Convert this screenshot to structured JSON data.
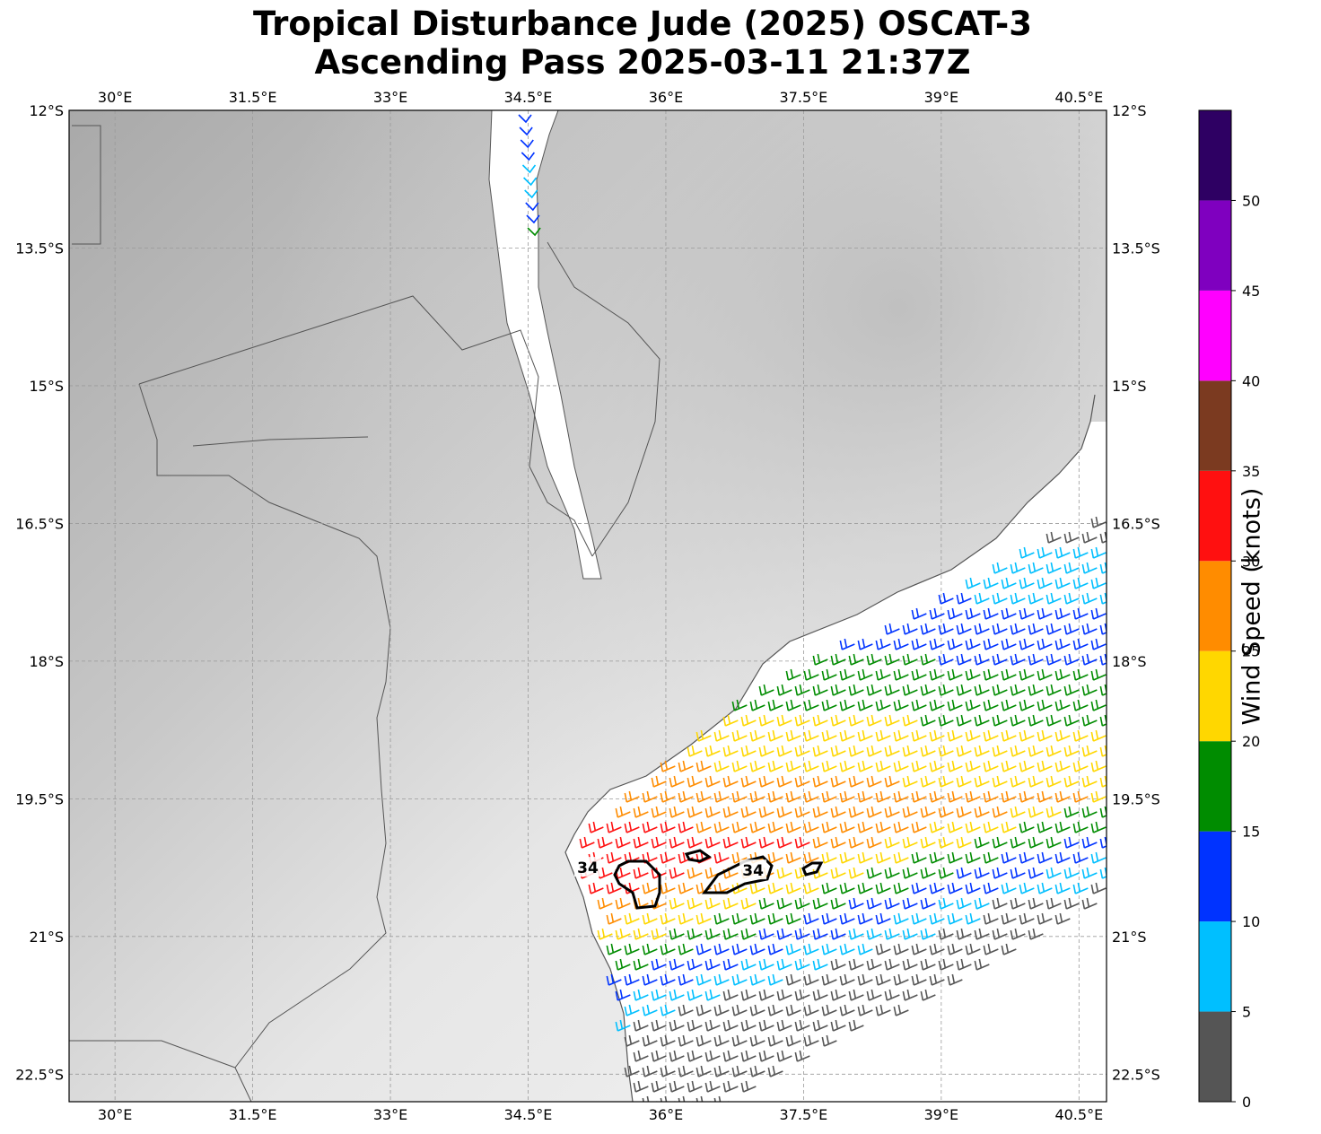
{
  "title": {
    "line1": "Tropical Disturbance Jude (2025) OSCAT-3",
    "line2": "Ascending Pass 2025-03-11 21:37Z"
  },
  "map": {
    "lon_range": [
      29.5,
      40.8
    ],
    "lat_range": [
      -22.8,
      -12.0
    ],
    "lon_ticks": [
      30.0,
      31.5,
      33.0,
      34.5,
      36.0,
      37.5,
      39.0,
      40.5
    ],
    "lon_tick_labels": [
      "30°E",
      "31.5°E",
      "33°E",
      "34.5°E",
      "36°E",
      "37.5°E",
      "39°E",
      "40.5°E"
    ],
    "lat_ticks": [
      -12.0,
      -13.5,
      -15.0,
      -16.5,
      -18.0,
      -19.5,
      -21.0,
      -22.5
    ],
    "lat_tick_labels": [
      "12°S",
      "13.5°S",
      "15°S",
      "16.5°S",
      "18°S",
      "19.5°S",
      "21°S",
      "22.5°S"
    ],
    "gridlines": true,
    "land_shading": "grayscale elevation",
    "barb_colors": [
      "#555555",
      "#00bfff",
      "#0033ff",
      "#008c00",
      "#ffd700",
      "#ff8c00",
      "#ff1010",
      "#7b3a20",
      "#ff00ff",
      "#7f00bf",
      "#2e0063"
    ],
    "contour_label": "34",
    "contour_labels": [
      {
        "text": "34",
        "lon": 35.15,
        "lat": -20.25
      },
      {
        "text": "34",
        "lon": 36.95,
        "lat": -20.28
      }
    ]
  },
  "colorbar": {
    "title": "Wind Speed (knots)",
    "bounds": [
      0,
      5,
      10,
      15,
      20,
      25,
      30,
      35,
      40,
      45,
      50,
      55
    ],
    "tick_values": [
      0,
      5,
      10,
      15,
      20,
      25,
      30,
      35,
      40,
      45,
      50
    ],
    "tick_labels": [
      "0",
      "5",
      "10",
      "15",
      "20",
      "25",
      "30",
      "35",
      "40",
      "45",
      "50"
    ],
    "colors": [
      "#555555",
      "#00bfff",
      "#0033ff",
      "#008c00",
      "#ffd700",
      "#ff8c00",
      "#ff1010",
      "#7b3a20",
      "#ff00ff",
      "#7f00bf",
      "#2e0063"
    ]
  }
}
